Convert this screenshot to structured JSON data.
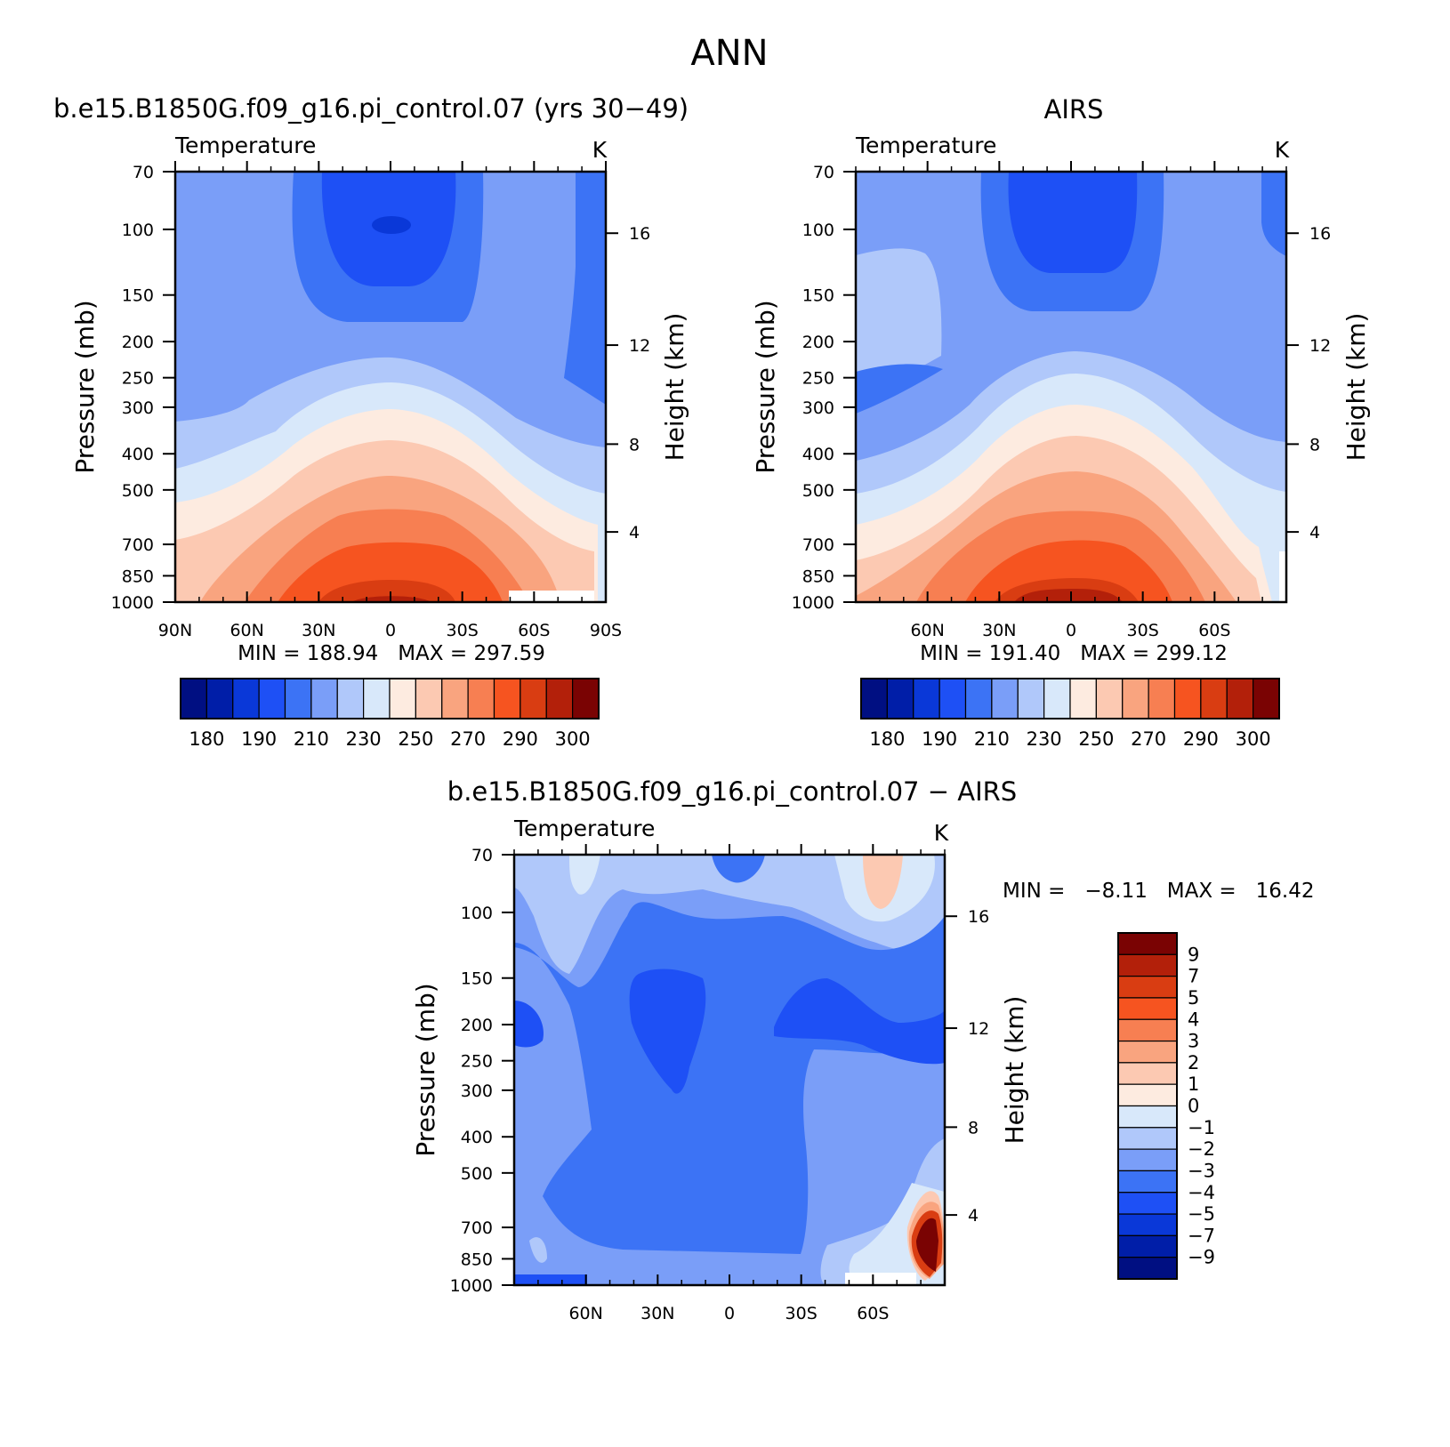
{
  "page": {
    "title": "ANN"
  },
  "colors": {
    "temperature_levels": [
      "#000f82",
      "#001ea8",
      "#0a38d8",
      "#1e50f5",
      "#3c73f5",
      "#7a9ef8",
      "#b0c8fa",
      "#d8e8fa",
      "#fdebe0",
      "#fcc9b2",
      "#f9a47f",
      "#f77f52",
      "#f65420",
      "#d93d12",
      "#b3200a",
      "#7a0303"
    ],
    "difference_levels": [
      "#000f82",
      "#001ea8",
      "#0a38d8",
      "#1e50f5",
      "#3c73f5",
      "#7a9ef8",
      "#b0c8fa",
      "#d8e8fa",
      "#fdebe0",
      "#fcc9b2",
      "#f9a47f",
      "#f77f52",
      "#f65420",
      "#d93d12",
      "#b3200a",
      "#7a0303"
    ]
  },
  "chart_data": [
    {
      "type": "heatmap",
      "panel_title": "b.e15.B1850G.f09_g16.pi_control.07 (yrs 30−49)",
      "title": "Temperature",
      "units": "K",
      "ylabel": "Pressure (mb)",
      "y2label": "Height (km)",
      "x_tick_labels": [
        "90N",
        "60N",
        "30N",
        "0",
        "30S",
        "60S",
        "90S"
      ],
      "y_tick_labels": [
        "70",
        "100",
        "150",
        "200",
        "250",
        "300",
        "400",
        "500",
        "700",
        "850",
        "1000"
      ],
      "y2_tick_labels": [
        "16",
        "12",
        "8",
        "4"
      ],
      "ylim": [
        1000,
        70
      ],
      "stats_text": "MIN = 188.94   MAX = 297.59",
      "min": 188.94,
      "max": 297.59,
      "levels": [
        175,
        180,
        185,
        190,
        200,
        210,
        220,
        230,
        240,
        250,
        260,
        270,
        280,
        290,
        295,
        300
      ],
      "colorbar_labels": [
        "180",
        "190",
        "210",
        "230",
        "250",
        "270",
        "290",
        "300"
      ]
    },
    {
      "type": "heatmap",
      "panel_title": "AIRS",
      "title": "Temperature",
      "units": "K",
      "ylabel": "Pressure (mb)",
      "y2label": "Height (km)",
      "x_tick_labels": [
        "60N",
        "30N",
        "0",
        "30S",
        "60S"
      ],
      "y_tick_labels": [
        "70",
        "100",
        "150",
        "200",
        "250",
        "300",
        "400",
        "500",
        "700",
        "850",
        "1000"
      ],
      "y2_tick_labels": [
        "16",
        "12",
        "8",
        "4"
      ],
      "ylim": [
        1000,
        70
      ],
      "stats_text": "MIN = 191.40   MAX = 299.12",
      "min": 191.4,
      "max": 299.12,
      "levels": [
        175,
        180,
        185,
        190,
        200,
        210,
        220,
        230,
        240,
        250,
        260,
        270,
        280,
        290,
        295,
        300
      ],
      "colorbar_labels": [
        "180",
        "190",
        "210",
        "230",
        "250",
        "270",
        "290",
        "300"
      ]
    },
    {
      "type": "heatmap",
      "panel_title": "b.e15.B1850G.f09_g16.pi_control.07 − AIRS",
      "title": "Temperature",
      "units": "K",
      "ylabel": "Pressure (mb)",
      "y2label": "Height (km)",
      "x_tick_labels": [
        "60N",
        "30N",
        "0",
        "30S",
        "60S"
      ],
      "y_tick_labels": [
        "70",
        "100",
        "150",
        "200",
        "250",
        "300",
        "400",
        "500",
        "700",
        "850",
        "1000"
      ],
      "y2_tick_labels": [
        "16",
        "12",
        "8",
        "4"
      ],
      "ylim": [
        1000,
        70
      ],
      "stats_text": "MIN =   −8.11   MAX =   16.42",
      "min": -8.11,
      "max": 16.42,
      "levels": [
        -9,
        -7,
        -5,
        -4,
        -3,
        -2,
        -1,
        0,
        1,
        2,
        3,
        4,
        5,
        7,
        9
      ],
      "colorbar_labels": [
        "9",
        "7",
        "5",
        "4",
        "3",
        "2",
        "1",
        "0",
        "−1",
        "−2",
        "−3",
        "−4",
        "−5",
        "−7",
        "−9"
      ]
    }
  ]
}
